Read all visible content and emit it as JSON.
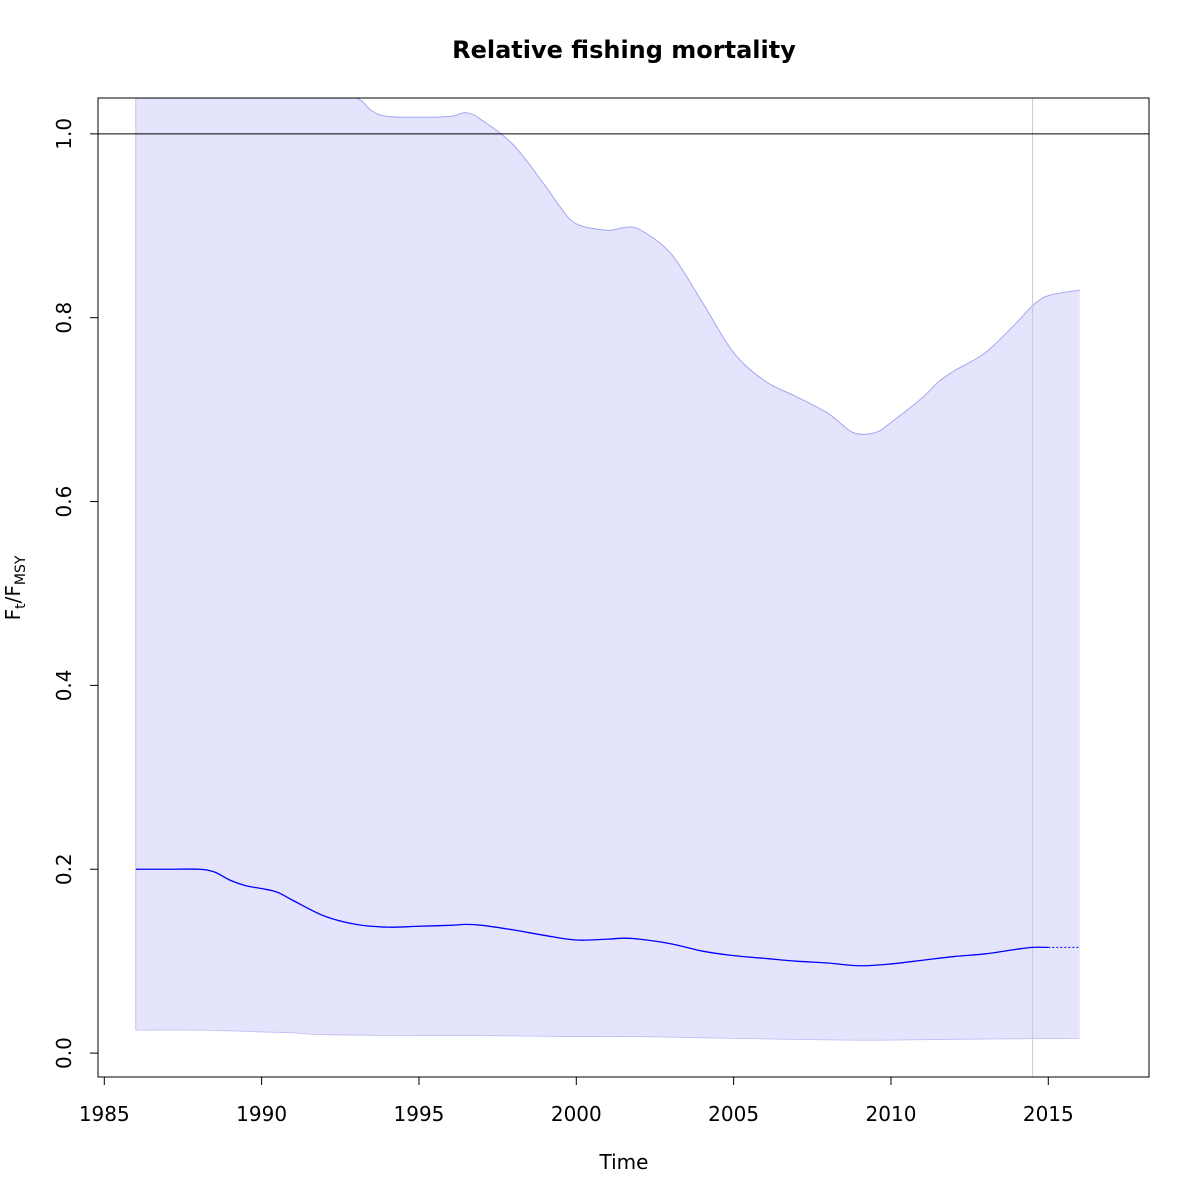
{
  "chart_data": {
    "type": "line",
    "title": "Relative fishing mortality",
    "xlabel": "Time",
    "ylabel": {
      "main_1": "F",
      "sub_1": "t",
      "sep": "/",
      "main_2": "F",
      "sub_2": "MSY"
    },
    "xlim": [
      1984.8,
      2018.2
    ],
    "ylim": [
      -0.026,
      1.039
    ],
    "x_ticks": [
      1985,
      1990,
      1995,
      2000,
      2005,
      2010,
      2015
    ],
    "y_ticks": [
      0.0,
      0.2,
      0.4,
      0.6,
      0.8,
      1.0
    ],
    "y_tick_labels": [
      "0.0",
      "0.2",
      "0.4",
      "0.6",
      "0.8",
      "1.0"
    ],
    "reference_hline": 1.0,
    "reference_vline": 2014.5,
    "colors": {
      "estimate": "#0000ff",
      "band_fill": "#e4e4fc",
      "band_edge": "#a6a6f0",
      "reference": "#000000",
      "vline": "#c8c8d4"
    },
    "series": [
      {
        "role": "estimate",
        "x": [
          1986,
          1987,
          1988,
          1988.5,
          1989,
          1989.5,
          1990,
          1990.5,
          1991,
          1992,
          1993,
          1994,
          1995,
          1996,
          1996.5,
          1997,
          1998,
          1999,
          2000,
          2001,
          2001.5,
          2002,
          2003,
          2004,
          2005,
          2006,
          2007,
          2008,
          2009,
          2010,
          2011,
          2012,
          2013,
          2014,
          2014.5,
          2015
        ],
        "values": [
          0.2,
          0.2,
          0.2,
          0.197,
          0.188,
          0.182,
          0.179,
          0.175,
          0.166,
          0.149,
          0.14,
          0.137,
          0.138,
          0.139,
          0.14,
          0.139,
          0.134,
          0.128,
          0.123,
          0.124,
          0.125,
          0.124,
          0.119,
          0.111,
          0.106,
          0.103,
          0.1,
          0.098,
          0.095,
          0.097,
          0.101,
          0.105,
          0.108,
          0.113,
          0.115,
          0.115
        ]
      },
      {
        "role": "forecast",
        "x": [
          2015,
          2016
        ],
        "values": [
          0.115,
          0.115
        ]
      },
      {
        "role": "upper_ci",
        "x": [
          1986,
          1988,
          1990,
          1992,
          1993,
          1993.5,
          1994,
          1995,
          1996,
          1996.5,
          1997,
          1998,
          1999,
          1999.5,
          2000,
          2001,
          2001.5,
          2002,
          2003,
          2004,
          2005,
          2006,
          2007,
          2008,
          2008.8,
          2009.5,
          2010,
          2011,
          2011.5,
          2012,
          2013,
          2014,
          2014.5,
          2015,
          2016
        ],
        "values": [
          1.039,
          1.039,
          1.039,
          1.039,
          1.039,
          1.025,
          1.019,
          1.018,
          1.019,
          1.023,
          1.015,
          0.988,
          0.944,
          0.92,
          0.902,
          0.895,
          0.898,
          0.896,
          0.87,
          0.817,
          0.762,
          0.731,
          0.714,
          0.696,
          0.675,
          0.675,
          0.686,
          0.713,
          0.73,
          0.742,
          0.762,
          0.795,
          0.813,
          0.824,
          0.83
        ]
      },
      {
        "role": "lower_ci",
        "x": [
          1986,
          1988,
          1990,
          1991,
          1992,
          1995,
          1997,
          2000,
          2002,
          2005,
          2009,
          2012,
          2016
        ],
        "values": [
          0.025,
          0.025,
          0.023,
          0.022,
          0.02,
          0.019,
          0.019,
          0.018,
          0.018,
          0.016,
          0.014,
          0.015,
          0.016
        ]
      }
    ]
  }
}
